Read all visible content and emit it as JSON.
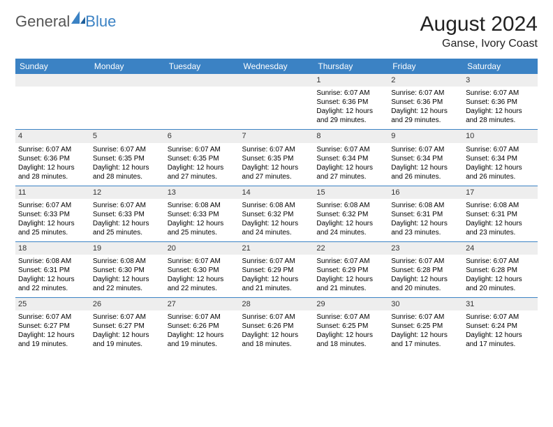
{
  "logo": {
    "text1": "General",
    "text2": "Blue",
    "icon_color": "#3b82c4"
  },
  "title": "August 2024",
  "location": "Ganse, Ivory Coast",
  "colors": {
    "header_bg": "#3b82c4",
    "header_fg": "#ffffff",
    "daynum_bg": "#eeeeee",
    "border": "#3b82c4",
    "background": "#ffffff"
  },
  "font": {
    "body_size": 10,
    "header_size": 12,
    "title_size": 30
  },
  "day_headers": [
    "Sunday",
    "Monday",
    "Tuesday",
    "Wednesday",
    "Thursday",
    "Friday",
    "Saturday"
  ],
  "weeks": [
    [
      {
        "empty": true
      },
      {
        "empty": true
      },
      {
        "empty": true
      },
      {
        "empty": true
      },
      {
        "day": "1",
        "sunrise": "6:07 AM",
        "sunset": "6:36 PM",
        "daylight": "12 hours and 29 minutes."
      },
      {
        "day": "2",
        "sunrise": "6:07 AM",
        "sunset": "6:36 PM",
        "daylight": "12 hours and 29 minutes."
      },
      {
        "day": "3",
        "sunrise": "6:07 AM",
        "sunset": "6:36 PM",
        "daylight": "12 hours and 28 minutes."
      }
    ],
    [
      {
        "day": "4",
        "sunrise": "6:07 AM",
        "sunset": "6:36 PM",
        "daylight": "12 hours and 28 minutes."
      },
      {
        "day": "5",
        "sunrise": "6:07 AM",
        "sunset": "6:35 PM",
        "daylight": "12 hours and 28 minutes."
      },
      {
        "day": "6",
        "sunrise": "6:07 AM",
        "sunset": "6:35 PM",
        "daylight": "12 hours and 27 minutes."
      },
      {
        "day": "7",
        "sunrise": "6:07 AM",
        "sunset": "6:35 PM",
        "daylight": "12 hours and 27 minutes."
      },
      {
        "day": "8",
        "sunrise": "6:07 AM",
        "sunset": "6:34 PM",
        "daylight": "12 hours and 27 minutes."
      },
      {
        "day": "9",
        "sunrise": "6:07 AM",
        "sunset": "6:34 PM",
        "daylight": "12 hours and 26 minutes."
      },
      {
        "day": "10",
        "sunrise": "6:07 AM",
        "sunset": "6:34 PM",
        "daylight": "12 hours and 26 minutes."
      }
    ],
    [
      {
        "day": "11",
        "sunrise": "6:07 AM",
        "sunset": "6:33 PM",
        "daylight": "12 hours and 25 minutes."
      },
      {
        "day": "12",
        "sunrise": "6:07 AM",
        "sunset": "6:33 PM",
        "daylight": "12 hours and 25 minutes."
      },
      {
        "day": "13",
        "sunrise": "6:08 AM",
        "sunset": "6:33 PM",
        "daylight": "12 hours and 25 minutes."
      },
      {
        "day": "14",
        "sunrise": "6:08 AM",
        "sunset": "6:32 PM",
        "daylight": "12 hours and 24 minutes."
      },
      {
        "day": "15",
        "sunrise": "6:08 AM",
        "sunset": "6:32 PM",
        "daylight": "12 hours and 24 minutes."
      },
      {
        "day": "16",
        "sunrise": "6:08 AM",
        "sunset": "6:31 PM",
        "daylight": "12 hours and 23 minutes."
      },
      {
        "day": "17",
        "sunrise": "6:08 AM",
        "sunset": "6:31 PM",
        "daylight": "12 hours and 23 minutes."
      }
    ],
    [
      {
        "day": "18",
        "sunrise": "6:08 AM",
        "sunset": "6:31 PM",
        "daylight": "12 hours and 22 minutes."
      },
      {
        "day": "19",
        "sunrise": "6:08 AM",
        "sunset": "6:30 PM",
        "daylight": "12 hours and 22 minutes."
      },
      {
        "day": "20",
        "sunrise": "6:07 AM",
        "sunset": "6:30 PM",
        "daylight": "12 hours and 22 minutes."
      },
      {
        "day": "21",
        "sunrise": "6:07 AM",
        "sunset": "6:29 PM",
        "daylight": "12 hours and 21 minutes."
      },
      {
        "day": "22",
        "sunrise": "6:07 AM",
        "sunset": "6:29 PM",
        "daylight": "12 hours and 21 minutes."
      },
      {
        "day": "23",
        "sunrise": "6:07 AM",
        "sunset": "6:28 PM",
        "daylight": "12 hours and 20 minutes."
      },
      {
        "day": "24",
        "sunrise": "6:07 AM",
        "sunset": "6:28 PM",
        "daylight": "12 hours and 20 minutes."
      }
    ],
    [
      {
        "day": "25",
        "sunrise": "6:07 AM",
        "sunset": "6:27 PM",
        "daylight": "12 hours and 19 minutes."
      },
      {
        "day": "26",
        "sunrise": "6:07 AM",
        "sunset": "6:27 PM",
        "daylight": "12 hours and 19 minutes."
      },
      {
        "day": "27",
        "sunrise": "6:07 AM",
        "sunset": "6:26 PM",
        "daylight": "12 hours and 19 minutes."
      },
      {
        "day": "28",
        "sunrise": "6:07 AM",
        "sunset": "6:26 PM",
        "daylight": "12 hours and 18 minutes."
      },
      {
        "day": "29",
        "sunrise": "6:07 AM",
        "sunset": "6:25 PM",
        "daylight": "12 hours and 18 minutes."
      },
      {
        "day": "30",
        "sunrise": "6:07 AM",
        "sunset": "6:25 PM",
        "daylight": "12 hours and 17 minutes."
      },
      {
        "day": "31",
        "sunrise": "6:07 AM",
        "sunset": "6:24 PM",
        "daylight": "12 hours and 17 minutes."
      }
    ]
  ],
  "labels": {
    "sunrise": "Sunrise:",
    "sunset": "Sunset:",
    "daylight": "Daylight:"
  }
}
